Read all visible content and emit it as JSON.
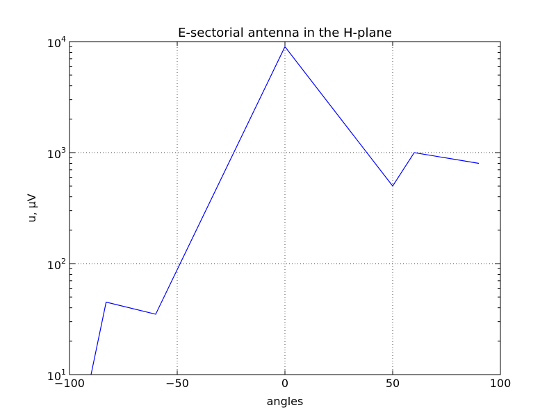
{
  "chart_data": {
    "type": "line",
    "title": "E-sectorial antenna in the H-plane",
    "xlabel": "angles",
    "ylabel": "u, μV",
    "xlim": [
      -100,
      100
    ],
    "ylim": [
      10,
      10000
    ],
    "yscale": "log",
    "grid": true,
    "x_ticks": [
      {
        "value": -100,
        "label": "−100"
      },
      {
        "value": -50,
        "label": "−50"
      },
      {
        "value": 0,
        "label": "0"
      },
      {
        "value": 50,
        "label": "50"
      },
      {
        "value": 100,
        "label": "100"
      }
    ],
    "y_ticks": [
      {
        "value": 10,
        "base": "10",
        "exp": "1"
      },
      {
        "value": 100,
        "base": "10",
        "exp": "2"
      },
      {
        "value": 1000,
        "base": "10",
        "exp": "3"
      },
      {
        "value": 10000,
        "base": "10",
        "exp": "4"
      }
    ],
    "series": [
      {
        "color": "#0000ff",
        "x": [
          -90,
          -83,
          -60,
          0,
          50,
          60,
          90
        ],
        "y": [
          10,
          45,
          35,
          9000,
          500,
          1000,
          800
        ]
      }
    ]
  }
}
